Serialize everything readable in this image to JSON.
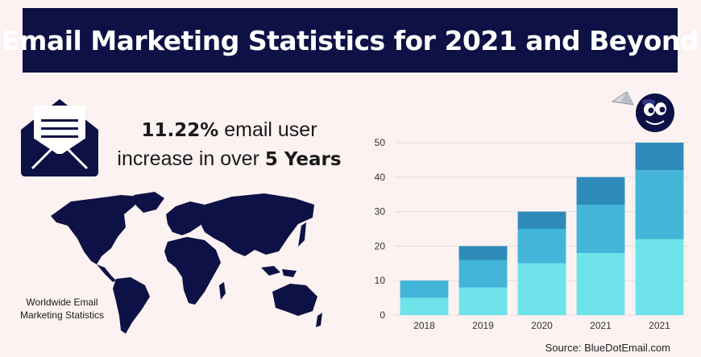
{
  "title": "Email Marketing Statistics for 2021 and Beyond",
  "stat": {
    "line1_bold": "11.22%",
    "line1_rest": " email user",
    "line2_prefix": "increase in over ",
    "line2_bold": "5 Years"
  },
  "map_caption": "Worldwide Email Marketing Statistics",
  "source": "Source: BlueDotEmail.com",
  "icons": [
    "envelope-letter-icon",
    "world-map-icon",
    "mascot-icon",
    "paper-plane-icon"
  ],
  "colors": {
    "title_bg": "#0d1145",
    "navy": "#0d1145",
    "seg_light": "#6ee3ea",
    "seg_mid": "#42b5d8",
    "seg_dark": "#2e8bb9"
  },
  "chart_data": {
    "type": "bar",
    "stacked": true,
    "categories": [
      "2018",
      "2019",
      "2020",
      "2021",
      "2021"
    ],
    "series": [
      {
        "values": [
          5,
          8,
          15,
          18,
          22
        ],
        "color": "#6ee3ea"
      },
      {
        "values": [
          5,
          8,
          10,
          14,
          20
        ],
        "color": "#42b5d8"
      },
      {
        "values": [
          0,
          4,
          5,
          8,
          8
        ],
        "color": "#2e8bb9"
      }
    ],
    "ylim": [
      0,
      50
    ],
    "yticks": [
      0,
      10,
      20,
      30,
      40,
      50
    ],
    "grid": true,
    "title": "",
    "xlabel": "",
    "ylabel": ""
  }
}
